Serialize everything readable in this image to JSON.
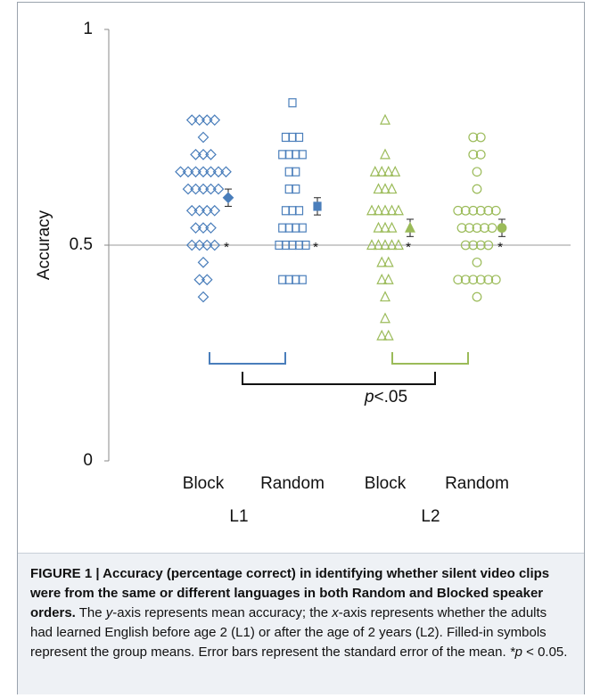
{
  "chart_data": {
    "type": "strip",
    "ylabel": "Accuracy",
    "ylim": [
      0,
      1
    ],
    "yticks": [
      0,
      0.5,
      1
    ],
    "reference_line": 0.5,
    "categories": [
      "Block",
      "Random",
      "Block",
      "Random"
    ],
    "groups": [
      "L1",
      "L2"
    ],
    "series": [
      {
        "color": "#4a7ebb",
        "marker": "diamond",
        "mean": 0.61,
        "error": 0.02,
        "significance": "*",
        "values": [
          0.79,
          0.79,
          0.79,
          0.79,
          0.75,
          0.71,
          0.71,
          0.71,
          0.67,
          0.67,
          0.67,
          0.67,
          0.67,
          0.67,
          0.67,
          0.63,
          0.63,
          0.63,
          0.63,
          0.63,
          0.58,
          0.58,
          0.58,
          0.58,
          0.54,
          0.54,
          0.54,
          0.5,
          0.5,
          0.5,
          0.5,
          0.46,
          0.42,
          0.42,
          0.38
        ]
      },
      {
        "color": "#4a7ebb",
        "marker": "square",
        "mean": 0.59,
        "error": 0.02,
        "significance": "*",
        "values": [
          0.83,
          0.75,
          0.75,
          0.75,
          0.71,
          0.71,
          0.71,
          0.71,
          0.67,
          0.67,
          0.63,
          0.63,
          0.58,
          0.58,
          0.58,
          0.54,
          0.54,
          0.54,
          0.54,
          0.5,
          0.5,
          0.5,
          0.5,
          0.5,
          0.42,
          0.42,
          0.42,
          0.42
        ]
      },
      {
        "color": "#9bbb59",
        "marker": "triangle",
        "mean": 0.54,
        "error": 0.02,
        "significance": "*",
        "values": [
          0.79,
          0.71,
          0.67,
          0.67,
          0.67,
          0.67,
          0.63,
          0.63,
          0.63,
          0.58,
          0.58,
          0.58,
          0.58,
          0.58,
          0.54,
          0.54,
          0.54,
          0.5,
          0.5,
          0.5,
          0.5,
          0.5,
          0.46,
          0.46,
          0.42,
          0.42,
          0.38,
          0.33,
          0.29,
          0.29
        ]
      },
      {
        "color": "#9bbb59",
        "marker": "circle",
        "mean": 0.54,
        "error": 0.02,
        "significance": "*",
        "values": [
          0.75,
          0.75,
          0.71,
          0.71,
          0.67,
          0.63,
          0.58,
          0.58,
          0.58,
          0.58,
          0.58,
          0.58,
          0.54,
          0.54,
          0.54,
          0.54,
          0.54,
          0.5,
          0.5,
          0.5,
          0.5,
          0.46,
          0.42,
          0.42,
          0.42,
          0.42,
          0.42,
          0.42,
          0.38
        ]
      }
    ],
    "annotation": [
      "p",
      "<.05"
    ]
  },
  "caption": {
    "heading": "FIGURE 1 | Accuracy (percentage correct) in identifying whether silent video clips were from the same or different languages in both Random and Blocked speaker orders.",
    "body": [
      {
        "text": " The "
      },
      {
        "text": "y",
        "italic": true
      },
      {
        "text": "-axis represents mean accuracy; the "
      },
      {
        "text": "x",
        "italic": true
      },
      {
        "text": "-axis represents whether the adults had learned English before age 2 (L1) or after the age of 2 years (L2). Filled-in symbols represent the group means. Error bars represent the standard error of the mean. "
      },
      {
        "text": "*p",
        "italic": true
      },
      {
        "text": " < 0.05."
      }
    ]
  }
}
